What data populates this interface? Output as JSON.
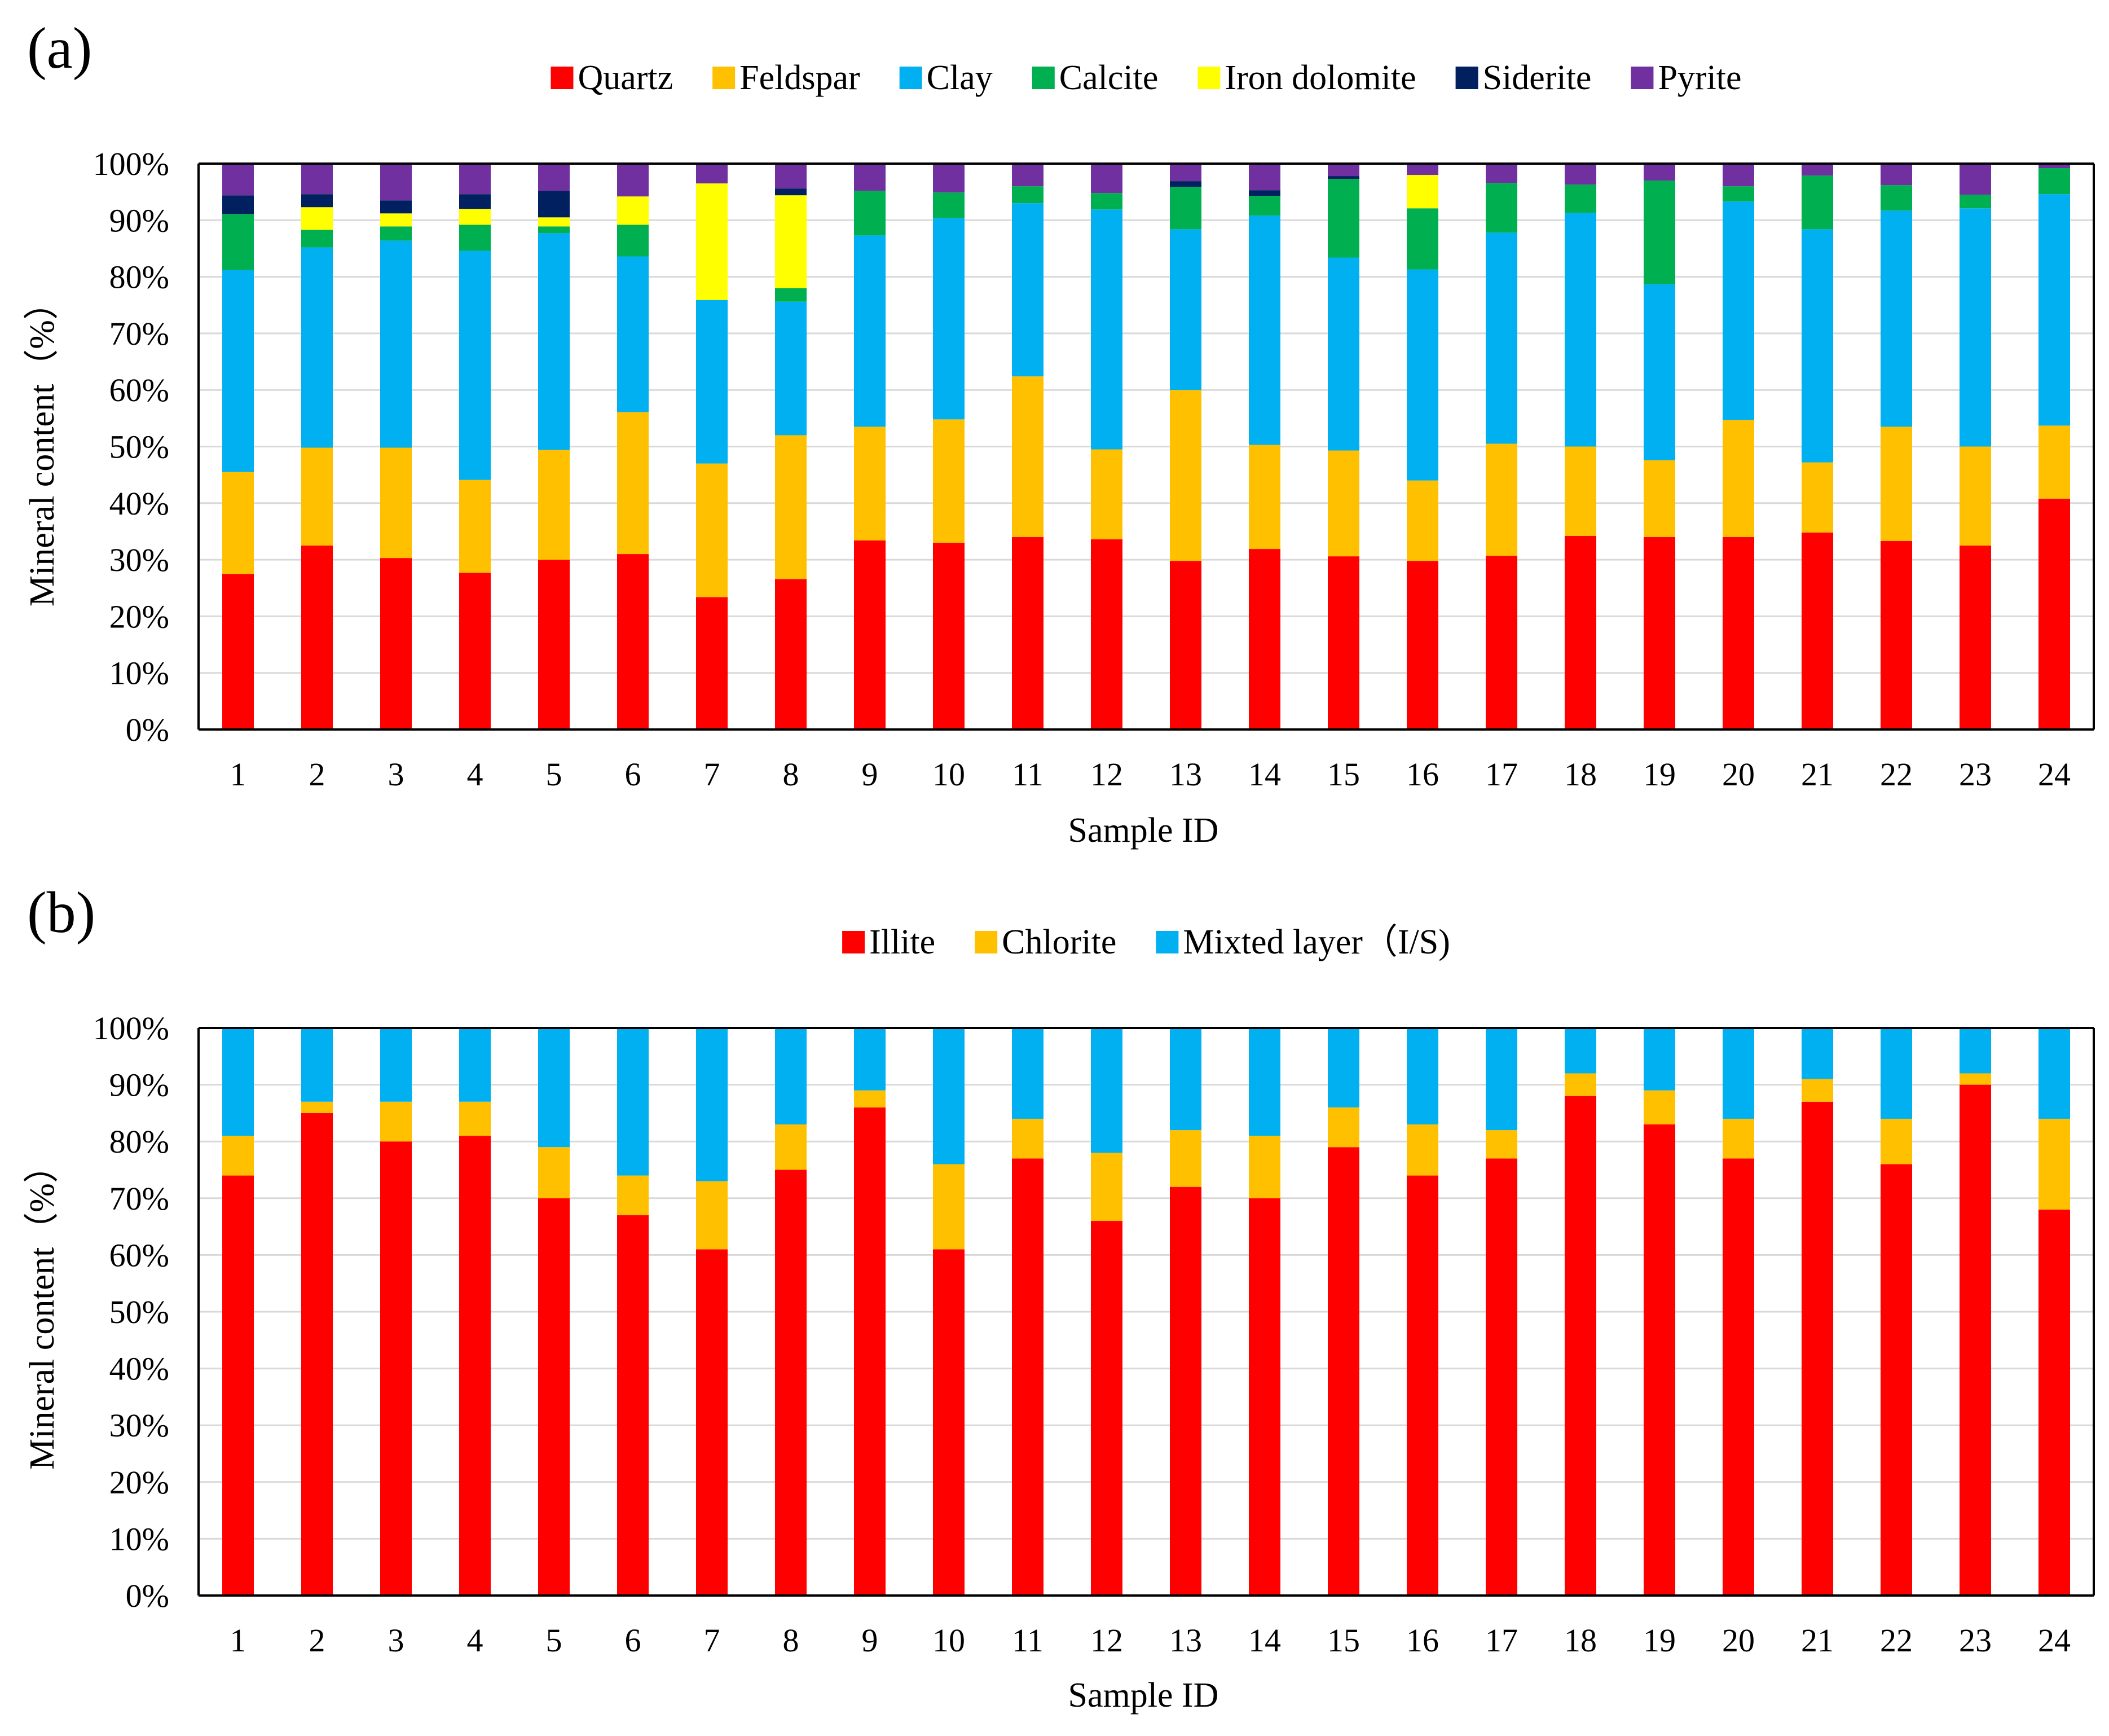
{
  "chart_data": [
    {
      "type": "bar",
      "stacked": true,
      "panel_label": "(a)",
      "title": "",
      "xlabel": "Sample ID",
      "ylabel": "Mineral content（%）",
      "ylim": [
        0,
        100
      ],
      "ytick_values": [
        0,
        10,
        20,
        30,
        40,
        50,
        60,
        70,
        80,
        90,
        100
      ],
      "ytick_labels": [
        "0%",
        "10%",
        "20%",
        "30%",
        "40%",
        "50%",
        "60%",
        "70%",
        "80%",
        "90%",
        "100%"
      ],
      "grid": true,
      "legend_position": "top-center",
      "categories": [
        "1",
        "2",
        "3",
        "4",
        "5",
        "6",
        "7",
        "8",
        "9",
        "10",
        "11",
        "12",
        "13",
        "14",
        "15",
        "16",
        "17",
        "18",
        "19",
        "20",
        "21",
        "22",
        "23",
        "24"
      ],
      "series": [
        {
          "name": "Quartz",
          "color": "#ff0000",
          "values": [
            27.5,
            32.5,
            30.3,
            27.7,
            30.0,
            31.0,
            23.4,
            26.6,
            33.4,
            33.0,
            34.0,
            33.6,
            29.8,
            31.9,
            30.6,
            29.8,
            30.7,
            34.2,
            34.0,
            34.0,
            34.8,
            33.3,
            32.5,
            40.8
          ]
        },
        {
          "name": "Feldspar",
          "color": "#ffc000",
          "values": [
            18.0,
            17.3,
            19.5,
            16.4,
            19.4,
            25.1,
            23.6,
            25.4,
            20.1,
            21.8,
            28.4,
            15.9,
            30.2,
            18.4,
            18.7,
            14.2,
            19.8,
            15.8,
            13.6,
            20.7,
            12.4,
            20.2,
            17.5,
            12.9
          ]
        },
        {
          "name": "Clay",
          "color": "#00b0f0",
          "values": [
            35.7,
            35.4,
            36.6,
            40.5,
            38.3,
            27.5,
            28.9,
            23.6,
            33.8,
            35.6,
            30.6,
            42.4,
            28.4,
            40.5,
            34.1,
            37.3,
            37.3,
            41.3,
            31.1,
            38.6,
            41.2,
            38.2,
            42.1,
            40.9
          ]
        },
        {
          "name": "Calcite",
          "color": "#00b050",
          "values": [
            9.9,
            3.1,
            2.5,
            4.6,
            1.2,
            5.6,
            0.0,
            2.4,
            7.9,
            4.5,
            3.0,
            2.9,
            7.5,
            3.5,
            13.9,
            10.8,
            8.8,
            5.0,
            18.3,
            2.7,
            9.5,
            4.5,
            2.4,
            4.6
          ]
        },
        {
          "name": "Iron dolomite",
          "color": "#ffff00",
          "values": [
            0.0,
            4.0,
            2.3,
            2.8,
            1.6,
            5.0,
            20.6,
            16.4,
            0.0,
            0.0,
            0.0,
            0.0,
            0.0,
            0.0,
            0.0,
            5.9,
            0.0,
            0.0,
            0.0,
            0.0,
            0.0,
            0.0,
            0.0,
            0.0
          ]
        },
        {
          "name": "Siderite",
          "color": "#002060",
          "values": [
            3.3,
            2.3,
            2.3,
            2.6,
            4.7,
            0.0,
            0.0,
            1.2,
            0.0,
            0.0,
            0.0,
            0.0,
            1.0,
            1.0,
            0.5,
            0.0,
            0.0,
            0.0,
            0.0,
            0.0,
            0.0,
            0.0,
            0.0,
            0.0
          ]
        },
        {
          "name": "Pyrite",
          "color": "#7030a0",
          "values": [
            5.6,
            5.4,
            6.5,
            5.4,
            4.8,
            5.8,
            3.5,
            4.4,
            4.8,
            5.1,
            4.0,
            5.2,
            3.1,
            4.7,
            2.2,
            2.0,
            3.4,
            3.7,
            3.0,
            4.0,
            2.1,
            3.8,
            5.5,
            0.8
          ]
        }
      ]
    },
    {
      "type": "bar",
      "stacked": true,
      "panel_label": "(b)",
      "title": "",
      "xlabel": "Sample ID",
      "ylabel": "Mineral content（%）",
      "ylim": [
        0,
        100
      ],
      "ytick_values": [
        0,
        10,
        20,
        30,
        40,
        50,
        60,
        70,
        80,
        90,
        100
      ],
      "ytick_labels": [
        "0%",
        "10%",
        "20%",
        "30%",
        "40%",
        "50%",
        "60%",
        "70%",
        "80%",
        "90%",
        "100%"
      ],
      "grid": true,
      "legend_position": "top-center",
      "categories": [
        "1",
        "2",
        "3",
        "4",
        "5",
        "6",
        "7",
        "8",
        "9",
        "10",
        "11",
        "12",
        "13",
        "14",
        "15",
        "16",
        "17",
        "18",
        "19",
        "20",
        "21",
        "22",
        "23",
        "24"
      ],
      "series": [
        {
          "name": "Illite",
          "color": "#ff0000",
          "values": [
            74,
            85,
            80,
            81,
            70,
            67,
            61,
            75,
            86,
            61,
            77,
            66,
            72,
            70,
            79,
            74,
            77,
            88,
            83,
            77,
            87,
            76,
            90,
            68
          ]
        },
        {
          "name": "Chlorite",
          "color": "#ffc000",
          "values": [
            7,
            2,
            7,
            6,
            9,
            7,
            12,
            8,
            3,
            15,
            7,
            12,
            10,
            11,
            7,
            9,
            5,
            4,
            6,
            7,
            4,
            8,
            2,
            16
          ]
        },
        {
          "name": "Mixted layer（I/S)",
          "color": "#00b0f0",
          "values": [
            19,
            13,
            13,
            13,
            21,
            26,
            27,
            17,
            11,
            24,
            16,
            22,
            18,
            19,
            14,
            17,
            18,
            8,
            11,
            16,
            9,
            16,
            8,
            16
          ]
        }
      ]
    }
  ]
}
